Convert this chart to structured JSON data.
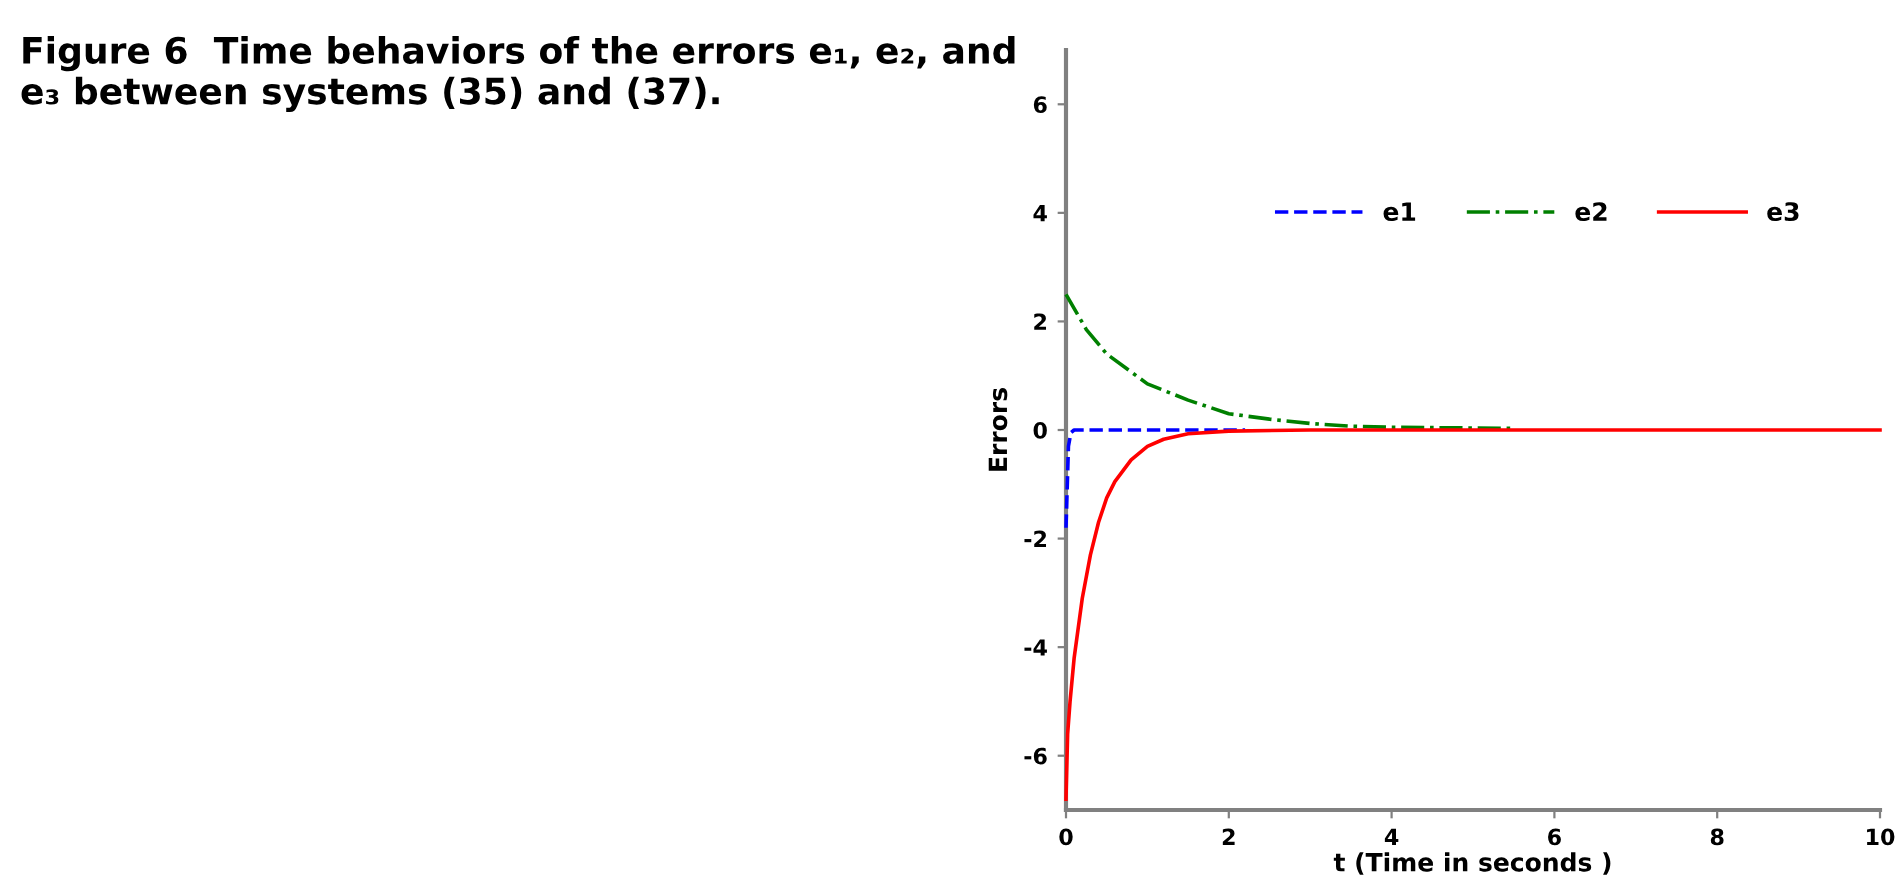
{
  "chart_data": {
    "type": "line",
    "title": "Figure 6  Time behaviors of the errors e₁, e₂, and e₃ between systems (35) and (37).",
    "xlabel": "t (Time in seconds )",
    "ylabel": "Errors",
    "xlim": [
      0,
      10
    ],
    "ylim": [
      -7,
      7
    ],
    "xticks": [
      0,
      2,
      4,
      6,
      8,
      10
    ],
    "yticks": [
      -6,
      -4,
      -2,
      0,
      2,
      4,
      6
    ],
    "grid": false,
    "legend": "top right",
    "series": [
      {
        "name": "e1",
        "color": "#0000ff",
        "line_style": "dashed",
        "x": [
          0,
          0.03,
          0.06,
          0.1,
          2.2
        ],
        "values": [
          -1.8,
          -0.3,
          -0.05,
          0,
          0
        ]
      },
      {
        "name": "e2",
        "color": "#008000",
        "line_style": "dashdot",
        "x": [
          0,
          0.25,
          0.5,
          1,
          1.5,
          2,
          2.5,
          3,
          3.5,
          4,
          5.5
        ],
        "values": [
          2.5,
          1.85,
          1.4,
          0.85,
          0.55,
          0.3,
          0.2,
          0.12,
          0.07,
          0.05,
          0.03
        ]
      },
      {
        "name": "e3",
        "color": "#ff0000",
        "line_style": "solid",
        "x": [
          0,
          0.02,
          0.05,
          0.1,
          0.2,
          0.3,
          0.4,
          0.5,
          0.6,
          0.8,
          1.0,
          1.2,
          1.5,
          2,
          3,
          10
        ],
        "values": [
          -6.8,
          -5.6,
          -5.0,
          -4.2,
          -3.1,
          -2.3,
          -1.7,
          -1.25,
          -0.95,
          -0.55,
          -0.3,
          -0.17,
          -0.07,
          -0.02,
          0,
          0
        ]
      }
    ]
  }
}
